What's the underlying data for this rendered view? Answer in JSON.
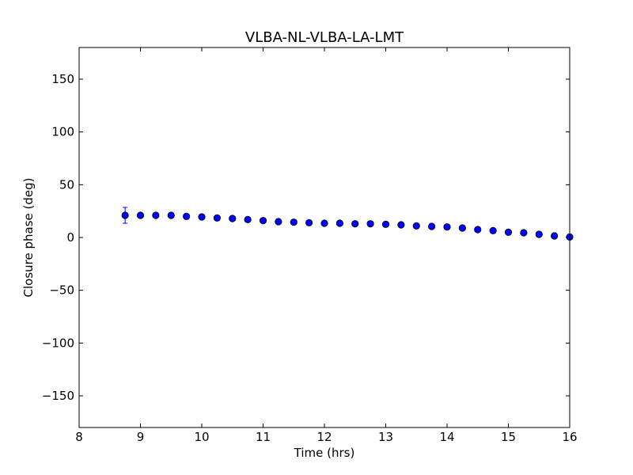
{
  "chart_data": {
    "type": "scatter",
    "title": "VLBA-NL-VLBA-LA-LMT",
    "xlabel": "Time (hrs)",
    "ylabel": "Closure phase (deg)",
    "xlim": [
      8,
      16
    ],
    "ylim": [
      -180,
      180
    ],
    "xticks": [
      8,
      9,
      10,
      11,
      12,
      13,
      14,
      15,
      16
    ],
    "xtick_labels": [
      "8",
      "9",
      "10",
      "11",
      "12",
      "13",
      "14",
      "15",
      "16"
    ],
    "yticks": [
      -150,
      -100,
      -50,
      0,
      50,
      100,
      150
    ],
    "ytick_labels": [
      "−150",
      "−100",
      "−50",
      "0",
      "50",
      "100",
      "150"
    ],
    "grid": false,
    "marker_color": "#0000ff",
    "marker_edge_color": "#000000",
    "errorbar_color": "#0000ff",
    "x": [
      8.75,
      9.0,
      9.25,
      9.5,
      9.75,
      10.0,
      10.25,
      10.5,
      10.75,
      11.0,
      11.25,
      11.5,
      11.75,
      12.0,
      12.25,
      12.5,
      12.75,
      13.0,
      13.25,
      13.5,
      13.75,
      14.0,
      14.25,
      14.5,
      14.75,
      15.0,
      15.25,
      15.5,
      15.75,
      16.0
    ],
    "y": [
      21.0,
      21.0,
      21.0,
      21.0,
      20.0,
      19.5,
      18.5,
      18.0,
      17.0,
      16.0,
      15.0,
      14.5,
      14.0,
      13.5,
      13.5,
      13.0,
      13.0,
      12.5,
      12.0,
      11.0,
      10.5,
      10.0,
      9.0,
      7.5,
      6.5,
      5.0,
      4.5,
      3.0,
      1.5,
      0.5
    ],
    "yerr": [
      7.5,
      1.5,
      1.5,
      1.5,
      1.5,
      1.5,
      1.5,
      1.5,
      1.5,
      1.5,
      1.5,
      1.5,
      1.5,
      1.5,
      1.5,
      1.5,
      1.5,
      1.5,
      1.5,
      1.5,
      1.5,
      1.5,
      1.5,
      1.5,
      1.5,
      1.5,
      1.5,
      1.5,
      1.5,
      1.5
    ]
  }
}
